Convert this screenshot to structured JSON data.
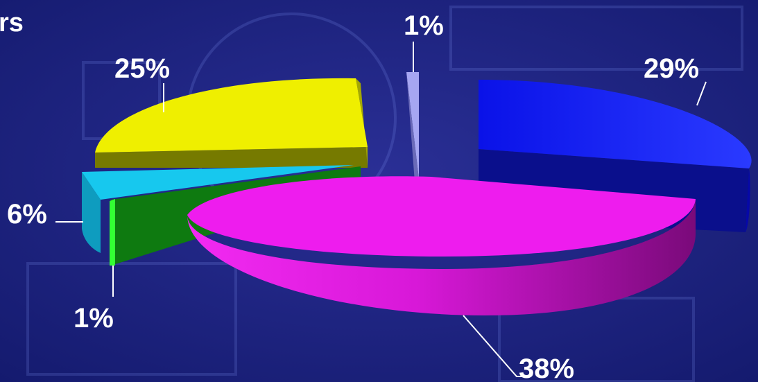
{
  "chart_data": {
    "type": "pie",
    "style": "exploded 3D pie",
    "title_fragment": "rs",
    "slices": [
      {
        "label": "29%",
        "value": 29,
        "color": "#0a14f0"
      },
      {
        "label": "38%",
        "value": 38,
        "color": "#f21af2"
      },
      {
        "label": "1%",
        "value": 1,
        "color": "#22dd22"
      },
      {
        "label": "1%",
        "value": 1,
        "color": "#9c9cf0"
      },
      {
        "label": "6%",
        "value": 6,
        "color": "#12c4ea"
      },
      {
        "label": "25%",
        "value": 25,
        "color": "#eeee00"
      }
    ]
  }
}
